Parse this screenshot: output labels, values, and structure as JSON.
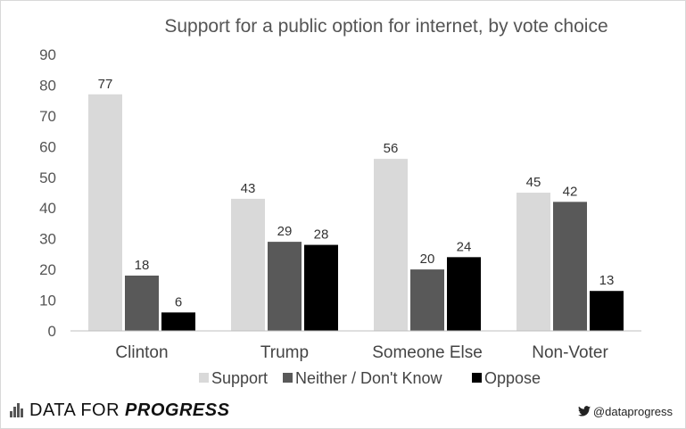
{
  "chart_data": {
    "type": "bar",
    "title": "Support for a public option for internet, by vote choice",
    "categories": [
      "Clinton",
      "Trump",
      "Someone Else",
      "Non-Voter"
    ],
    "series": [
      {
        "name": "Support",
        "values": [
          77,
          43,
          56,
          45
        ],
        "color": "#d9d9d9"
      },
      {
        "name": "Neither / Don't Know",
        "values": [
          18,
          29,
          20,
          42
        ],
        "color": "#595959"
      },
      {
        "name": "Oppose",
        "values": [
          6,
          28,
          24,
          13
        ],
        "color": "#000000"
      }
    ],
    "ylim": [
      0,
      90
    ],
    "yticks": [
      0,
      10,
      20,
      30,
      40,
      50,
      60,
      70,
      80,
      90
    ],
    "grid": false,
    "legend_position": "bottom"
  },
  "footer": {
    "brand_prefix": "DATA FOR",
    "brand_bold": "PROGRESS",
    "handle": "@dataprogress",
    "logo_icon": "bar-logo-icon",
    "social_icon": "twitter-icon"
  }
}
